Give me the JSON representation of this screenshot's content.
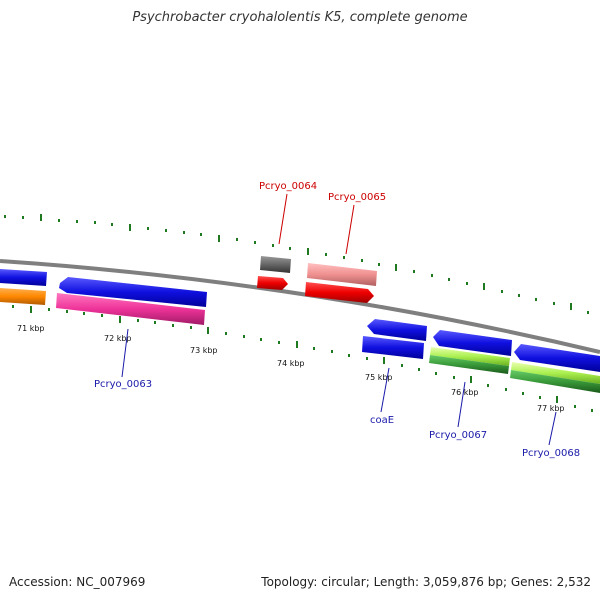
{
  "title": "Psychrobacter cryohalolentis K5, complete genome",
  "footer": {
    "accession_label": "Accession:",
    "accession": "NC_007969",
    "topology_label": "Topology:",
    "topology": "circular",
    "length_label": "Length:",
    "length": "3,059,876 bp",
    "genes_label": "Genes:",
    "genes": "2,532"
  },
  "colors": {
    "backbone": "#7a7a7a",
    "tick": "#1f7a1f",
    "blue_gene": "#1010e0",
    "red_gene": "#ee0000",
    "pink_gene": "#ee3399",
    "orange_gene": "#ff8800",
    "salmon_gene": "#f09090",
    "gray_gene": "#666666",
    "lime_gene": "#aaf050",
    "green_gene": "#3a9a3a",
    "forward_label": "#1a1aaa",
    "reverse_label": "#cc0000"
  },
  "scale": {
    "tick_labels": [
      "71 kbp",
      "72 kbp",
      "73 kbp",
      "74 kbp",
      "75 kbp",
      "76 kbp",
      "77 kbp"
    ]
  },
  "gene_labels": [
    {
      "name": "Pcryo_0063",
      "strand": "forward"
    },
    {
      "name": "Pcryo_0064",
      "strand": "reverse"
    },
    {
      "name": "Pcryo_0065",
      "strand": "reverse"
    },
    {
      "name": "coaE",
      "strand": "forward"
    },
    {
      "name": "Pcryo_0067",
      "strand": "forward"
    },
    {
      "name": "Pcryo_0068",
      "strand": "forward"
    }
  ]
}
